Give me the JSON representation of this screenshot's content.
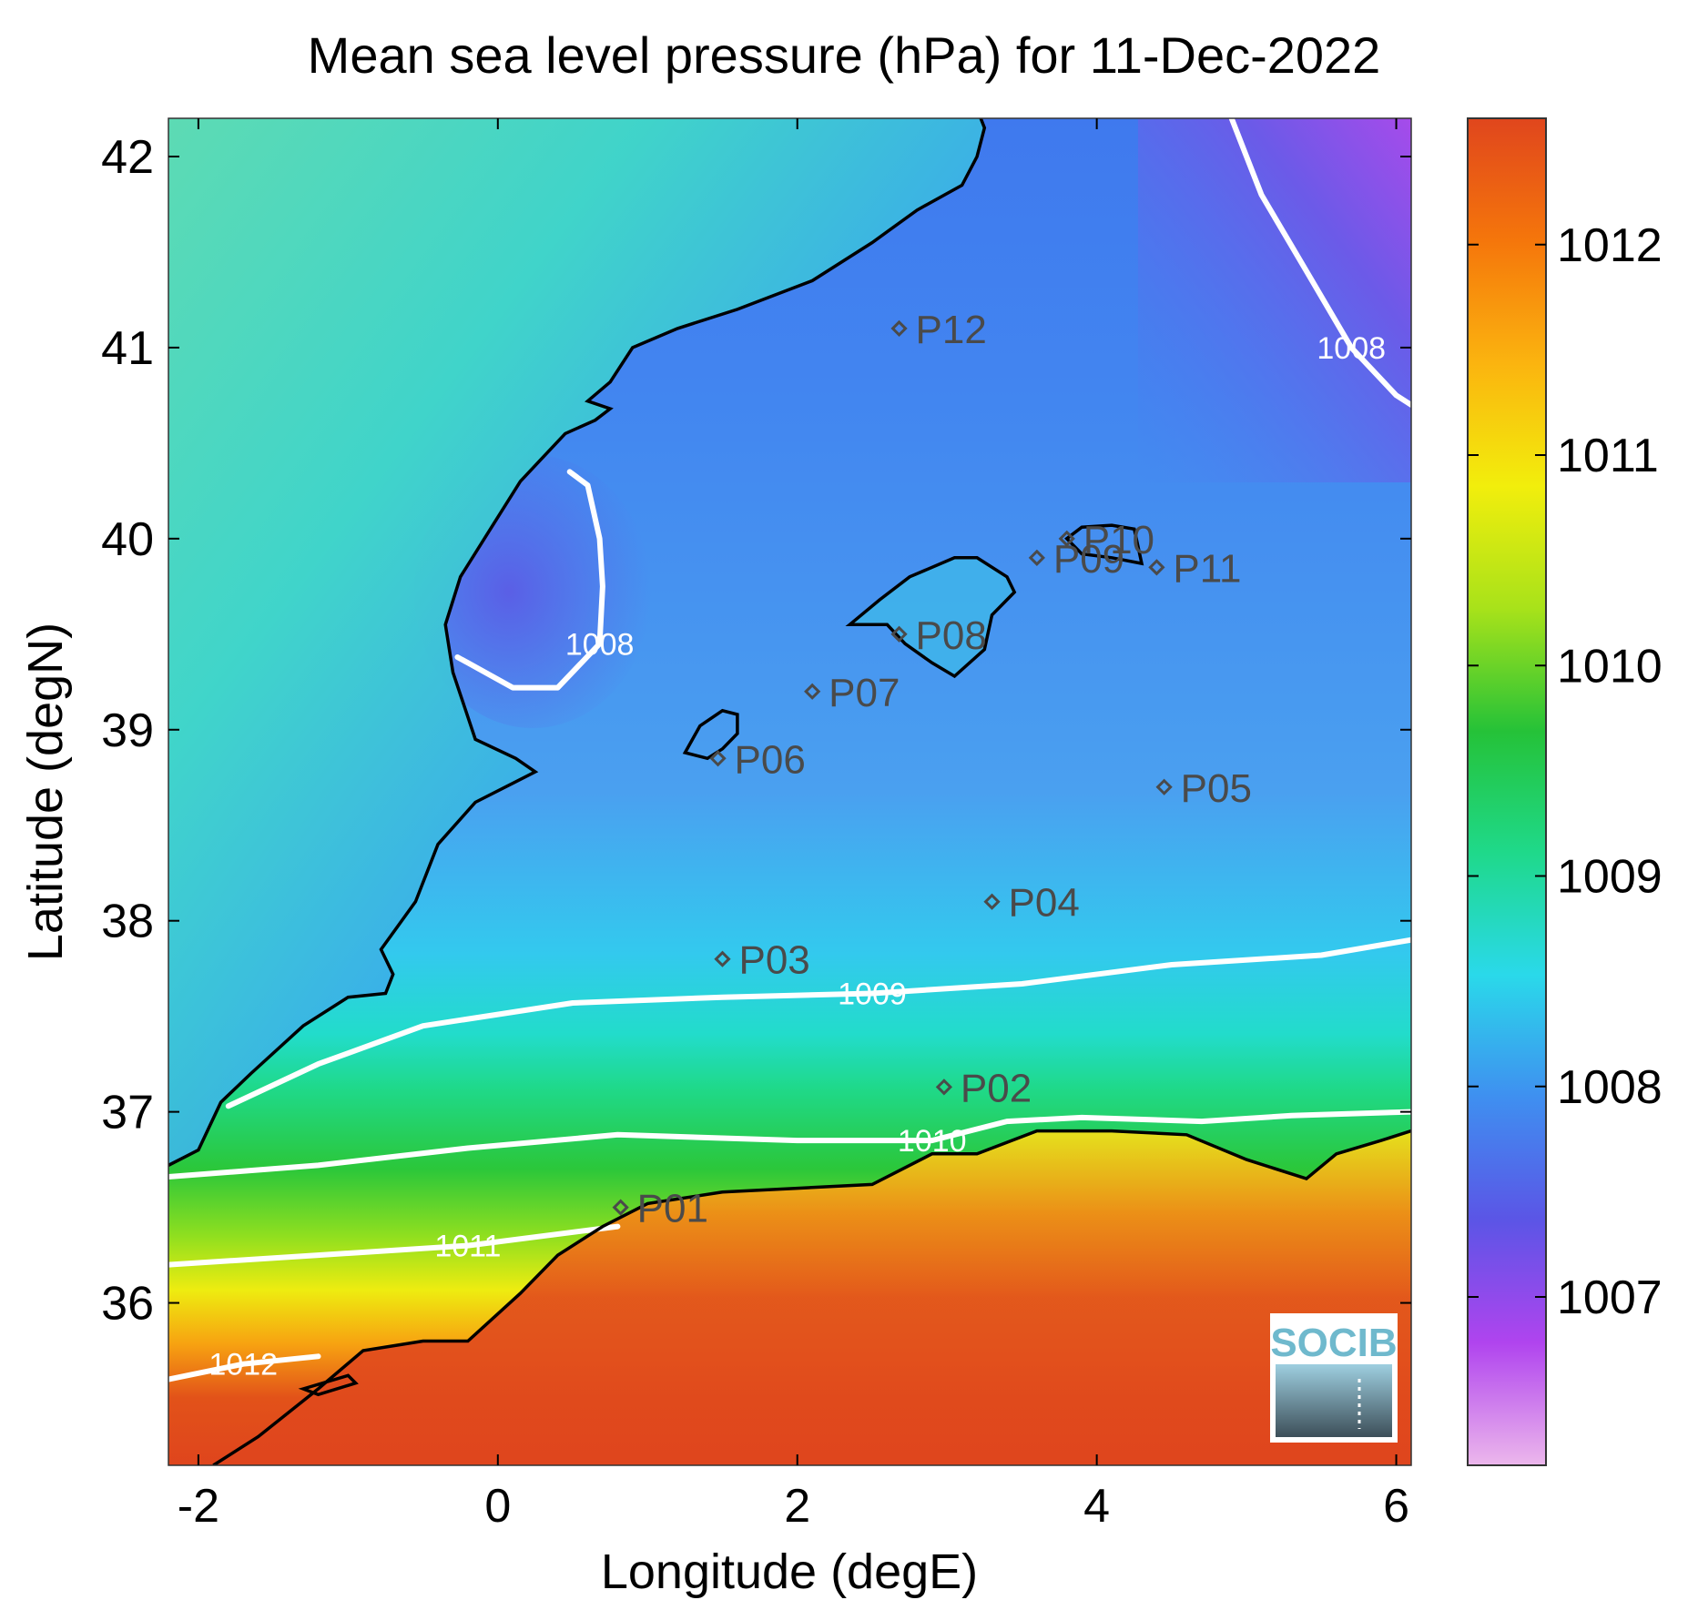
{
  "title": "Mean sea level pressure (hPa) for 11-Dec-2022",
  "chart_data": {
    "type": "heatmap",
    "xlabel": "Longitude (degE)",
    "ylabel": "Latitude (degN)",
    "xlim": [
      -2.2,
      6.1
    ],
    "ylim": [
      35.15,
      42.2
    ],
    "xticks": [
      -2,
      0,
      2,
      4,
      6
    ],
    "yticks": [
      36,
      37,
      38,
      39,
      40,
      41,
      42
    ],
    "colorbar": {
      "range": [
        1006.2,
        1012.6
      ],
      "ticks": [
        1007,
        1008,
        1009,
        1010,
        1011,
        1012
      ],
      "colormap": [
        "#ecb7ec",
        "#b044ee",
        "#5b55e6",
        "#3f8ff0",
        "#2ad9ea",
        "#1fd98a",
        "#25c238",
        "#a8e21a",
        "#f2ee0c",
        "#fbb40f",
        "#f5760b",
        "#e0461d"
      ]
    },
    "contours": [
      {
        "level": 1008,
        "label": "1008",
        "points": [
          [
            0.48,
            40.35
          ],
          [
            0.6,
            40.28
          ],
          [
            0.68,
            40.0
          ],
          [
            0.7,
            39.75
          ],
          [
            0.68,
            39.45
          ],
          [
            0.4,
            39.22
          ],
          [
            0.1,
            39.22
          ],
          [
            -0.2,
            39.35
          ],
          [
            -0.27,
            39.38
          ]
        ]
      },
      {
        "level": 1008,
        "label": "1008",
        "points": [
          [
            4.9,
            42.2
          ],
          [
            5.1,
            41.8
          ],
          [
            5.4,
            41.4
          ],
          [
            5.7,
            41.0
          ],
          [
            6.0,
            40.75
          ],
          [
            6.1,
            40.7
          ]
        ]
      },
      {
        "level": 1009,
        "label": "1009",
        "points": [
          [
            -1.8,
            37.03
          ],
          [
            -1.2,
            37.25
          ],
          [
            -0.5,
            37.45
          ],
          [
            0.5,
            37.57
          ],
          [
            1.5,
            37.6
          ],
          [
            2.5,
            37.62
          ],
          [
            3.5,
            37.67
          ],
          [
            4.5,
            37.77
          ],
          [
            5.5,
            37.82
          ],
          [
            6.1,
            37.9
          ]
        ]
      },
      {
        "level": 1010,
        "label": "1010",
        "points": [
          [
            -2.2,
            36.66
          ],
          [
            -1.2,
            36.72
          ],
          [
            -0.2,
            36.81
          ],
          [
            0.8,
            36.88
          ],
          [
            2.0,
            36.85
          ],
          [
            2.9,
            36.85
          ],
          [
            3.4,
            36.95
          ],
          [
            3.9,
            36.97
          ],
          [
            4.7,
            36.95
          ],
          [
            5.3,
            36.98
          ],
          [
            6.1,
            37.0
          ]
        ]
      },
      {
        "level": 1011,
        "label": "1011",
        "points": [
          [
            -2.2,
            36.2
          ],
          [
            -1.2,
            36.25
          ],
          [
            -0.2,
            36.3
          ],
          [
            0.8,
            36.4
          ]
        ]
      },
      {
        "level": 1012,
        "label": "1012",
        "points": [
          [
            -2.2,
            35.6
          ],
          [
            -1.7,
            35.68
          ],
          [
            -1.2,
            35.72
          ]
        ]
      }
    ],
    "stations": [
      {
        "name": "P01",
        "lon": 0.82,
        "lat": 36.5
      },
      {
        "name": "P02",
        "lon": 2.98,
        "lat": 37.13
      },
      {
        "name": "P03",
        "lon": 1.5,
        "lat": 37.8
      },
      {
        "name": "P04",
        "lon": 3.3,
        "lat": 38.1
      },
      {
        "name": "P05",
        "lon": 4.45,
        "lat": 38.7
      },
      {
        "name": "P06",
        "lon": 1.47,
        "lat": 38.85
      },
      {
        "name": "P07",
        "lon": 2.1,
        "lat": 39.2
      },
      {
        "name": "P08",
        "lon": 2.68,
        "lat": 39.5
      },
      {
        "name": "P09",
        "lon": 3.6,
        "lat": 39.9
      },
      {
        "name": "P10",
        "lon": 3.8,
        "lat": 40.0
      },
      {
        "name": "P11",
        "lon": 4.4,
        "lat": 39.85
      },
      {
        "name": "P12",
        "lon": 2.68,
        "lat": 41.1
      }
    ],
    "coastline_label": "",
    "logo": "SOCIB"
  }
}
